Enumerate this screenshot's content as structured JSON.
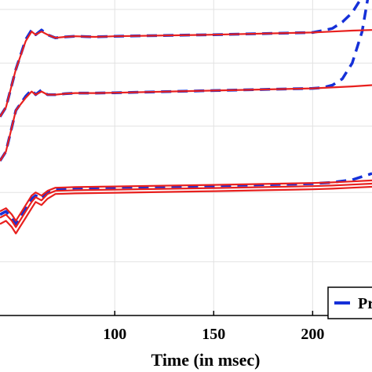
{
  "chart_data": {
    "type": "line",
    "title": "",
    "xlabel": "Time (in msec)",
    "ylabel": "",
    "xlim": [
      42,
      230
    ],
    "ylim": [
      0,
      100
    ],
    "x_ticks": [
      100,
      150,
      200
    ],
    "x_tick_labels": [
      "100",
      "150",
      "200"
    ],
    "y_ticks": [
      17,
      39,
      60,
      80,
      97
    ],
    "grid": true,
    "legend": {
      "placement": "bottom-right",
      "entries": [
        "Pr"
      ]
    },
    "colors": {
      "solid": "#e8201e",
      "dashed": "#1530d8",
      "grid": "#e2e2e2",
      "axis": "#000000"
    },
    "series": [
      {
        "style": "solid",
        "x": [
          42,
          45,
          50,
          55,
          58,
          60,
          63,
          66,
          70,
          75,
          80,
          85,
          90,
          100,
          150,
          200,
          210,
          220,
          230
        ],
        "y": [
          63,
          66,
          78,
          87,
          90,
          89,
          90,
          89,
          88,
          88.3,
          88.5,
          88.4,
          88.3,
          88.5,
          89,
          89.7,
          90,
          90.3,
          90.5
        ]
      },
      {
        "style": "dashed",
        "x": [
          42,
          45,
          50,
          55,
          58,
          60,
          63,
          66,
          70,
          75,
          80,
          85,
          90,
          100,
          150,
          200,
          205,
          210,
          215,
          220,
          225
        ],
        "y": [
          63,
          66,
          78,
          87.5,
          90.5,
          89,
          90.5,
          89,
          88,
          88.3,
          88.5,
          88.4,
          88.3,
          88.5,
          89,
          89.7,
          90.3,
          91,
          93,
          96,
          101
        ]
      },
      {
        "style": "solid",
        "x": [
          42,
          45,
          50,
          55,
          58,
          60,
          63,
          66,
          70,
          75,
          80,
          90,
          100,
          150,
          200,
          210,
          220,
          230
        ],
        "y": [
          49,
          52,
          65,
          69,
          71,
          70,
          71,
          70,
          70,
          70.3,
          70.5,
          70.5,
          70.6,
          71.3,
          72,
          72.3,
          72.6,
          73
        ]
      },
      {
        "style": "dashed",
        "x": [
          42,
          45,
          50,
          55,
          58,
          60,
          63,
          66,
          70,
          75,
          80,
          90,
          100,
          150,
          200,
          205,
          210,
          215,
          220,
          225,
          228
        ],
        "y": [
          49,
          52,
          65,
          69.5,
          71.5,
          70,
          71.5,
          70,
          70,
          70.3,
          70.5,
          70.5,
          70.6,
          71.3,
          72,
          72.2,
          73,
          75,
          80,
          90,
          101
        ]
      },
      {
        "style": "solid",
        "x": [
          42,
          45,
          48,
          50,
          52,
          55,
          58,
          60,
          63,
          66,
          70,
          75,
          80,
          90,
          100,
          150,
          200,
          210,
          220,
          230
        ],
        "y": [
          29,
          30,
          28,
          26,
          28,
          31,
          34,
          36,
          35,
          37,
          38.5,
          38.6,
          38.7,
          38.8,
          38.9,
          39.4,
          40,
          40.2,
          40.5,
          40.8
        ]
      },
      {
        "style": "solid",
        "x": [
          42,
          45,
          48,
          50,
          52,
          55,
          58,
          60,
          63,
          66,
          70,
          75,
          80,
          90,
          100,
          150,
          200,
          210,
          220,
          230
        ],
        "y": [
          31,
          32,
          30,
          28,
          30,
          33,
          36,
          37.5,
          36.5,
          38.5,
          39.5,
          39.6,
          39.7,
          39.8,
          39.9,
          40.4,
          41,
          41.2,
          41.5,
          41.8
        ]
      },
      {
        "style": "solid",
        "x": [
          42,
          45,
          48,
          50,
          52,
          55,
          58,
          60,
          63,
          66,
          70,
          75,
          80,
          90,
          100,
          150,
          200,
          210,
          220,
          230
        ],
        "y": [
          33,
          34,
          32,
          30,
          32,
          35,
          38,
          39,
          38,
          39.5,
          40.5,
          40.6,
          40.7,
          40.8,
          40.9,
          41.4,
          42,
          42.2,
          42.5,
          42.8
        ]
      },
      {
        "style": "dashed",
        "x": [
          42,
          45,
          48,
          50,
          52,
          55,
          58,
          60,
          63,
          66,
          70,
          75,
          80,
          90,
          100,
          150,
          200,
          210,
          215,
          220,
          225,
          230
        ],
        "y": [
          32,
          33,
          31,
          29,
          31,
          34,
          37,
          38,
          37,
          39,
          40,
          40.2,
          40.4,
          40.5,
          40.6,
          41.1,
          41.8,
          42.2,
          42.6,
          43,
          44,
          45
        ]
      }
    ]
  }
}
